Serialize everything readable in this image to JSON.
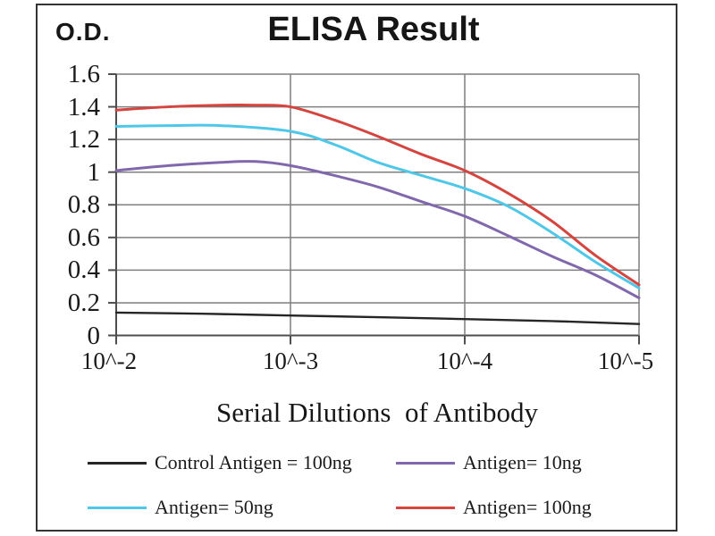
{
  "chart_data": {
    "type": "line",
    "title": "ELISA Result",
    "ylabel": "O.D.",
    "xlabel": "Serial Dilutions  of Antibody",
    "x_tick_labels": [
      "10^-2",
      "10^-3",
      "10^-4",
      "10^-5"
    ],
    "x_tick_decades": [
      0,
      1,
      2,
      3
    ],
    "y_tick_labels": [
      "1.6",
      "1.4",
      "1.2",
      "1",
      "0.8",
      "0.6",
      "0.4",
      "0.2",
      "0"
    ],
    "y_tick_values": [
      1.6,
      1.4,
      1.2,
      1.0,
      0.8,
      0.6,
      0.4,
      0.2,
      0
    ],
    "ylim": [
      0,
      1.6
    ],
    "grid": true,
    "legend_position": "bottom",
    "x_axis_note": "x is serial dilution from 10^-2 to 10^-5, expressed as decades from 10^-2",
    "colors": {
      "grid": "#7f7f7f",
      "axis": "#4d4d4d",
      "text": "#1a1a1a"
    },
    "series": [
      {
        "name": "Control Antigen = 100ng",
        "color": "#262626",
        "points": [
          [
            0,
            0.14
          ],
          [
            0.5,
            0.133
          ],
          [
            1,
            0.122
          ],
          [
            1.5,
            0.112
          ],
          [
            2,
            0.1
          ],
          [
            2.5,
            0.088
          ],
          [
            3,
            0.07
          ]
        ]
      },
      {
        "name": "Antigen= 10ng",
        "color": "#8168ad",
        "points": [
          [
            0,
            1.01
          ],
          [
            0.3,
            1.04
          ],
          [
            0.6,
            1.06
          ],
          [
            0.8,
            1.065
          ],
          [
            1,
            1.04
          ],
          [
            1.25,
            0.98
          ],
          [
            1.5,
            0.91
          ],
          [
            1.75,
            0.82
          ],
          [
            2,
            0.73
          ],
          [
            2.25,
            0.61
          ],
          [
            2.5,
            0.485
          ],
          [
            2.75,
            0.37
          ],
          [
            3,
            0.23
          ]
        ]
      },
      {
        "name": "Antigen= 50ng",
        "color": "#4ec7e8",
        "points": [
          [
            0,
            1.28
          ],
          [
            0.3,
            1.285
          ],
          [
            0.6,
            1.285
          ],
          [
            1,
            1.25
          ],
          [
            1.25,
            1.17
          ],
          [
            1.5,
            1.06
          ],
          [
            1.75,
            0.98
          ],
          [
            2,
            0.9
          ],
          [
            2.25,
            0.79
          ],
          [
            2.5,
            0.63
          ],
          [
            2.75,
            0.45
          ],
          [
            3,
            0.29
          ]
        ]
      },
      {
        "name": "Antigen= 100ng",
        "color": "#d4453f",
        "points": [
          [
            0,
            1.38
          ],
          [
            0.3,
            1.4
          ],
          [
            0.6,
            1.41
          ],
          [
            0.8,
            1.41
          ],
          [
            1,
            1.4
          ],
          [
            1.25,
            1.32
          ],
          [
            1.5,
            1.22
          ],
          [
            1.75,
            1.11
          ],
          [
            2,
            1.01
          ],
          [
            2.25,
            0.87
          ],
          [
            2.5,
            0.7
          ],
          [
            2.75,
            0.49
          ],
          [
            3,
            0.31
          ]
        ]
      }
    ]
  }
}
